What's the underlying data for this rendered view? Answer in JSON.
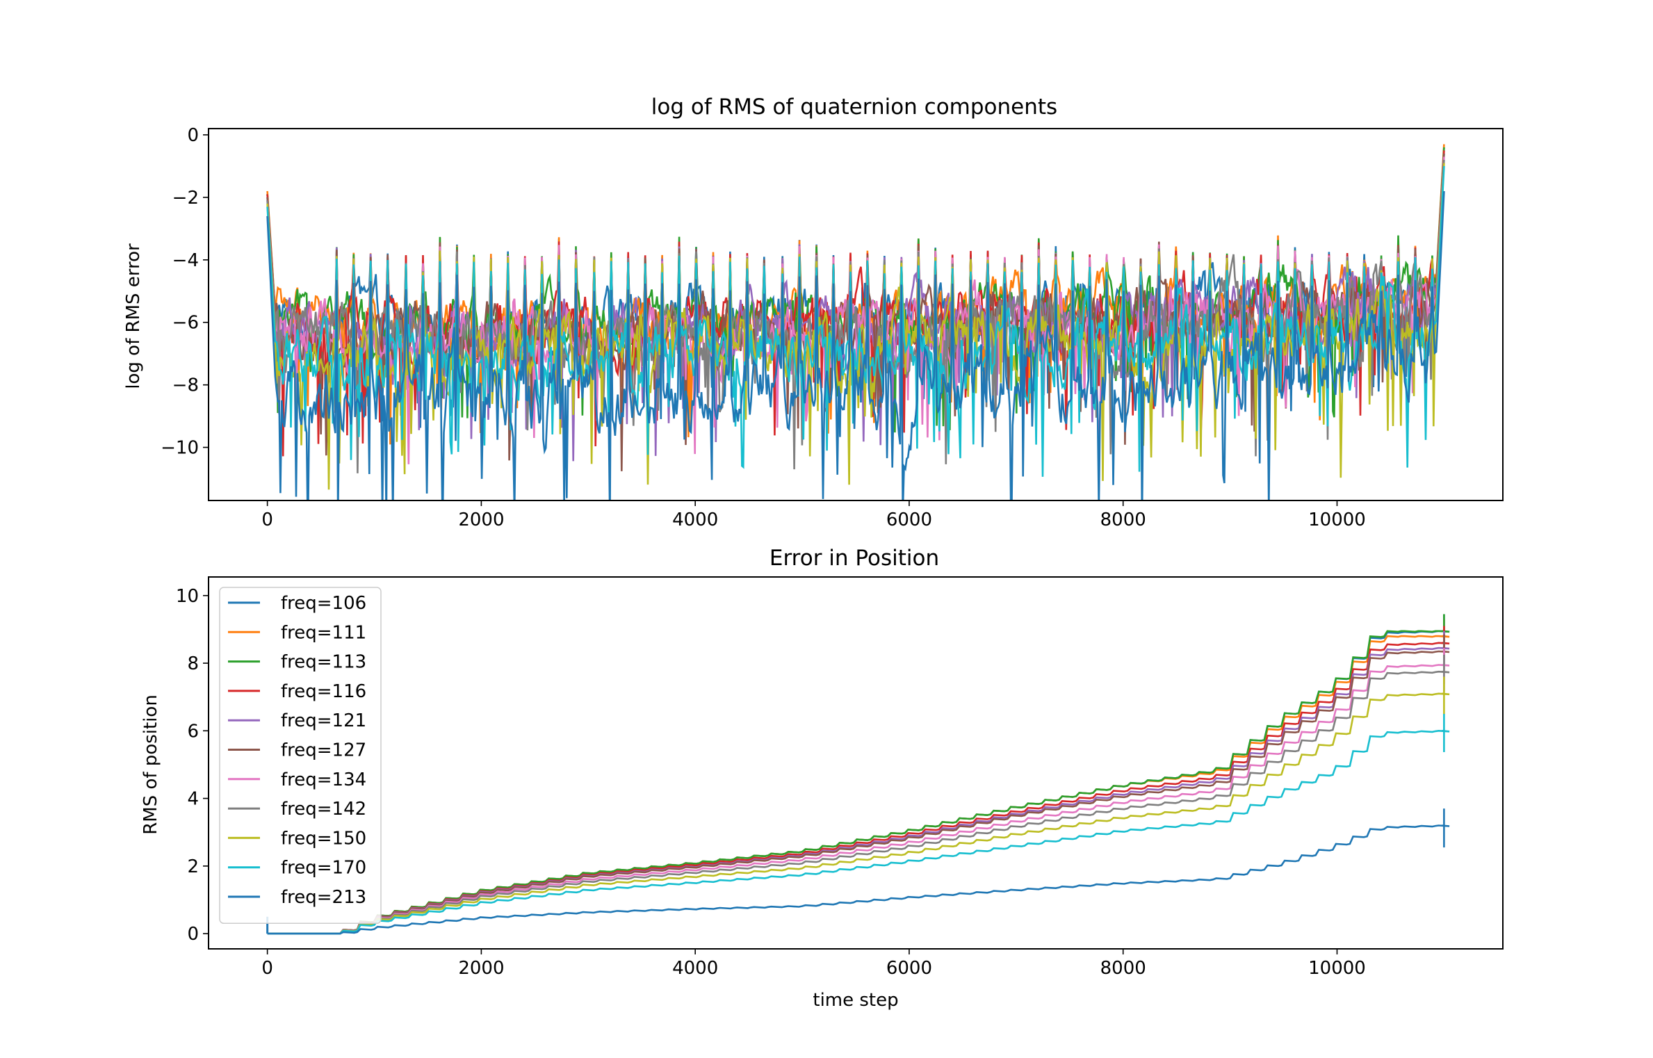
{
  "palette": [
    "#1f77b4",
    "#ff7f0e",
    "#2ca02c",
    "#d62728",
    "#9467bd",
    "#8c564b",
    "#e377c2",
    "#7f7f7f",
    "#bcbd22",
    "#17becf",
    "#1f77b4"
  ],
  "chart_data": [
    {
      "type": "line",
      "title": "log of RMS of quaternion components",
      "xlabel": "",
      "ylabel": "log of RMS error",
      "xlim": [
        -550,
        11550
      ],
      "ylim": [
        -11.7,
        0.2
      ],
      "xticks": [
        0,
        2000,
        4000,
        6000,
        8000,
        10000
      ],
      "yticks": [
        0,
        -2,
        -4,
        -6,
        -8,
        -10
      ],
      "xtick_labels": [
        "0",
        "2000",
        "4000",
        "6000",
        "8000",
        "10000"
      ],
      "ytick_labels": [
        "0",
        "−2",
        "−4",
        "−6",
        "−8",
        "−10"
      ],
      "grid": false,
      "legend": "none",
      "x_range": [
        0,
        11000
      ],
      "series": [
        {
          "name": "freq=106",
          "baseline_start": -6.0,
          "baseline_end": -5.2,
          "spread": 1.1,
          "peaks": [
            -1.9,
            -3.7,
            -3.9,
            -3.9,
            -3.9,
            -4.0,
            -4.0,
            -3.4,
            -0.4
          ]
        },
        {
          "name": "freq=111",
          "baseline_start": -6.0,
          "baseline_end": -5.0,
          "spread": 1.1,
          "peaks": [
            -1.8,
            -3.7,
            -3.9,
            -3.9,
            -3.9,
            -4.0,
            -4.0,
            -3.4,
            -0.3
          ]
        },
        {
          "name": "freq=113",
          "baseline_start": -6.1,
          "baseline_end": -5.1,
          "spread": 1.1,
          "peaks": [
            -1.9,
            -3.7,
            -3.9,
            -3.9,
            -3.9,
            -4.0,
            -4.0,
            -3.4,
            -0.4
          ]
        },
        {
          "name": "freq=116",
          "baseline_start": -6.2,
          "baseline_end": -5.3,
          "spread": 1.2,
          "peaks": [
            -1.9,
            -3.8,
            -3.9,
            -3.9,
            -3.9,
            -4.0,
            -4.0,
            -3.5,
            -0.5
          ]
        },
        {
          "name": "freq=121",
          "baseline_start": -6.3,
          "baseline_end": -5.4,
          "spread": 1.2,
          "peaks": [
            -2.0,
            -3.8,
            -4.0,
            -4.0,
            -4.0,
            -4.1,
            -4.1,
            -3.6,
            -0.6
          ]
        },
        {
          "name": "freq=127",
          "baseline_start": -6.4,
          "baseline_end": -5.5,
          "spread": 1.2,
          "peaks": [
            -2.0,
            -3.8,
            -4.0,
            -4.0,
            -4.0,
            -4.1,
            -4.1,
            -3.6,
            -0.6
          ]
        },
        {
          "name": "freq=134",
          "baseline_start": -6.5,
          "baseline_end": -5.6,
          "spread": 1.2,
          "peaks": [
            -2.1,
            -3.9,
            -4.0,
            -4.0,
            -4.0,
            -4.1,
            -4.1,
            -3.7,
            -0.7
          ]
        },
        {
          "name": "freq=142",
          "baseline_start": -6.6,
          "baseline_end": -5.8,
          "spread": 1.3,
          "peaks": [
            -2.1,
            -3.9,
            -4.1,
            -4.1,
            -4.1,
            -4.2,
            -4.2,
            -3.8,
            -0.8
          ]
        },
        {
          "name": "freq=150",
          "baseline_start": -6.8,
          "baseline_end": -6.0,
          "spread": 1.3,
          "peaks": [
            -2.2,
            -4.0,
            -4.1,
            -4.1,
            -4.1,
            -4.2,
            -4.2,
            -3.9,
            -0.9
          ]
        },
        {
          "name": "freq=170",
          "baseline_start": -7.0,
          "baseline_end": -6.4,
          "spread": 1.4,
          "peaks": [
            -2.3,
            -4.1,
            -4.2,
            -4.2,
            -4.2,
            -4.3,
            -4.3,
            -4.0,
            -1.0
          ]
        },
        {
          "name": "freq=213",
          "baseline_start": -8.2,
          "baseline_end": -7.4,
          "spread": 1.5,
          "peaks": [
            -2.6,
            -4.6,
            -4.8,
            -4.8,
            -4.8,
            -4.9,
            -4.9,
            -4.6,
            -1.8
          ]
        }
      ]
    },
    {
      "type": "line",
      "title": "Error in Position",
      "xlabel": "time step",
      "ylabel": "RMS of position",
      "xlim": [
        -550,
        11550
      ],
      "ylim": [
        -0.45,
        10.55
      ],
      "xticks": [
        0,
        2000,
        4000,
        6000,
        8000,
        10000
      ],
      "yticks": [
        0,
        2,
        4,
        6,
        8,
        10
      ],
      "xtick_labels": [
        "0",
        "2000",
        "4000",
        "6000",
        "8000",
        "10000"
      ],
      "ytick_labels": [
        "0",
        "2",
        "4",
        "6",
        "8",
        "10"
      ],
      "grid": false,
      "legend": "upper-left",
      "knots_x": [
        0,
        680,
        1000,
        2000,
        3000,
        4000,
        5000,
        6000,
        7000,
        8000,
        8900,
        9500,
        10000,
        10400,
        11000
      ],
      "series": [
        {
          "name": "freq=106",
          "values": [
            0.0,
            0.0,
            0.48,
            1.28,
            1.8,
            2.1,
            2.45,
            3.05,
            3.75,
            4.4,
            4.85,
            6.4,
            7.4,
            8.9,
            8.95
          ]
        },
        {
          "name": "freq=111",
          "values": [
            0.0,
            0.0,
            0.48,
            1.28,
            1.8,
            2.1,
            2.45,
            3.05,
            3.75,
            4.4,
            4.8,
            6.3,
            7.3,
            8.8,
            8.8
          ]
        },
        {
          "name": "freq=113",
          "values": [
            0.0,
            0.0,
            0.48,
            1.28,
            1.8,
            2.1,
            2.45,
            3.05,
            3.75,
            4.4,
            4.85,
            6.4,
            7.4,
            8.95,
            8.95
          ]
        },
        {
          "name": "freq=116",
          "values": [
            0.0,
            0.0,
            0.46,
            1.24,
            1.75,
            2.05,
            2.38,
            2.95,
            3.62,
            4.25,
            4.65,
            6.1,
            7.1,
            8.55,
            8.6
          ]
        },
        {
          "name": "freq=121",
          "values": [
            0.0,
            0.0,
            0.45,
            1.22,
            1.72,
            2.0,
            2.33,
            2.88,
            3.55,
            4.15,
            4.55,
            5.95,
            6.95,
            8.4,
            8.45
          ]
        },
        {
          "name": "freq=127",
          "values": [
            0.0,
            0.0,
            0.44,
            1.2,
            1.7,
            1.98,
            2.3,
            2.83,
            3.5,
            4.08,
            4.45,
            5.85,
            6.85,
            8.3,
            8.35
          ]
        },
        {
          "name": "freq=134",
          "values": [
            0.0,
            0.0,
            0.42,
            1.15,
            1.62,
            1.9,
            2.2,
            2.7,
            3.33,
            3.9,
            4.25,
            5.55,
            6.5,
            7.9,
            7.95
          ]
        },
        {
          "name": "freq=142",
          "values": [
            0.0,
            0.0,
            0.4,
            1.1,
            1.55,
            1.82,
            2.1,
            2.58,
            3.18,
            3.72,
            4.05,
            5.3,
            6.25,
            7.7,
            7.75
          ]
        },
        {
          "name": "freq=150",
          "values": [
            0.0,
            0.0,
            0.38,
            1.02,
            1.45,
            1.7,
            1.95,
            2.4,
            2.95,
            3.45,
            3.75,
            4.9,
            5.8,
            7.05,
            7.1
          ]
        },
        {
          "name": "freq=170",
          "values": [
            0.0,
            0.0,
            0.34,
            0.92,
            1.3,
            1.52,
            1.75,
            2.15,
            2.6,
            3.05,
            3.3,
            4.2,
            4.85,
            5.95,
            6.0
          ]
        },
        {
          "name": "freq=213",
          "values": [
            0.0,
            0.0,
            0.18,
            0.48,
            0.64,
            0.74,
            0.82,
            1.08,
            1.3,
            1.5,
            1.62,
            2.1,
            2.6,
            3.15,
            3.2
          ]
        }
      ]
    }
  ]
}
